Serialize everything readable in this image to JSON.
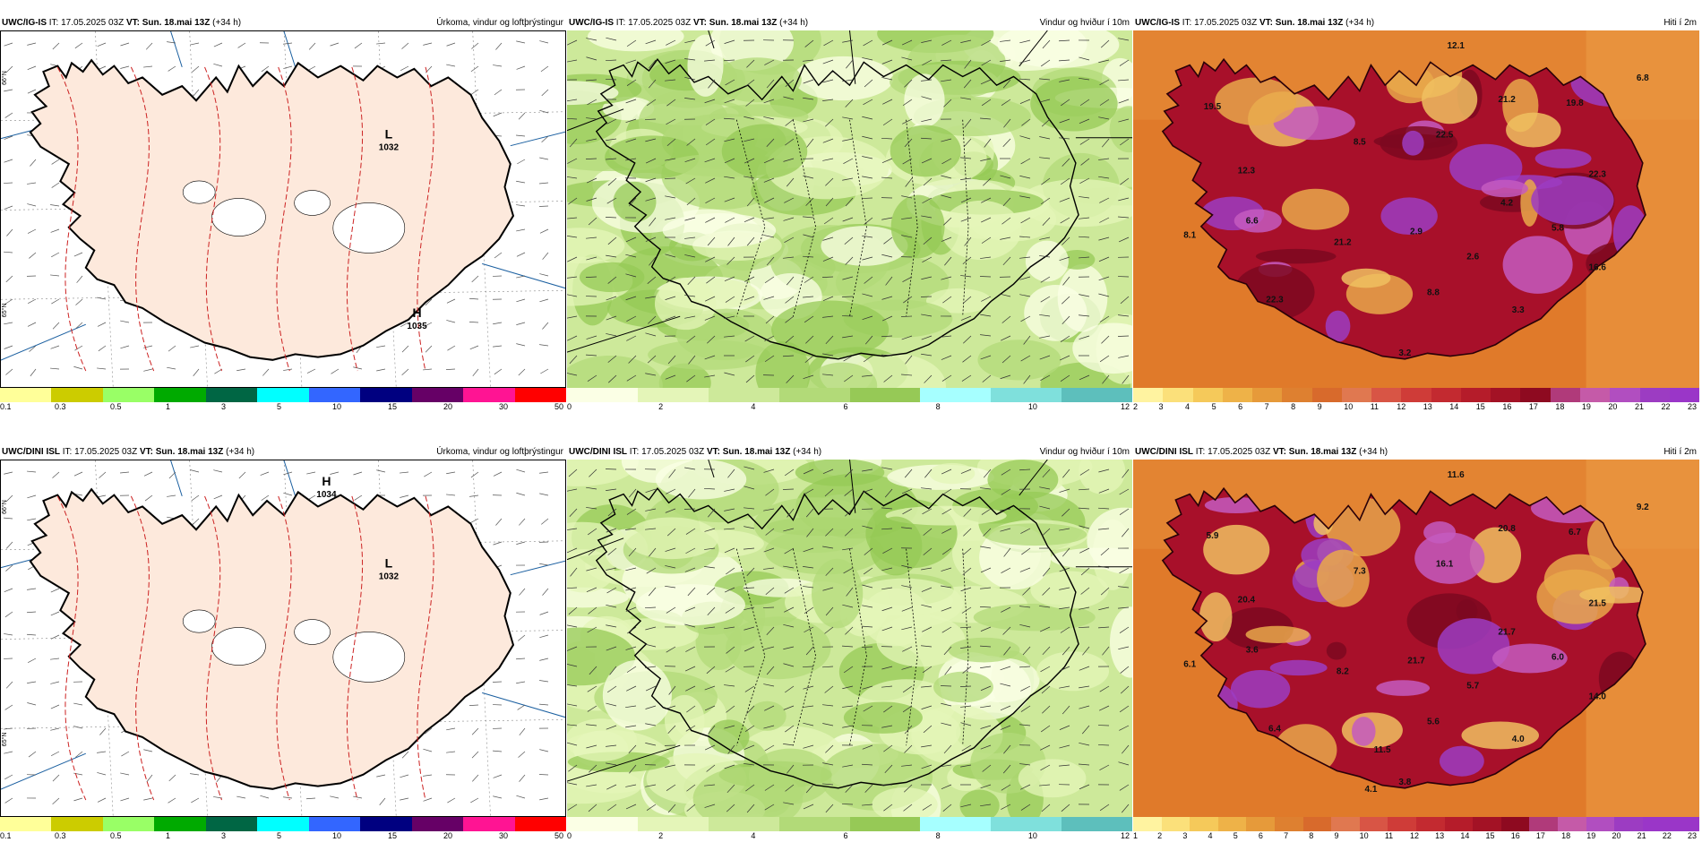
{
  "panels": [
    {
      "id": "top-precip",
      "header_model": "UWC/IG-IS",
      "header_it_label": "IT:",
      "header_it": "17.05.2025 03Z",
      "header_vt_label": "VT:",
      "header_vt": "Sun. 18.mai 13Z",
      "header_lead": "(+34 h)",
      "title": "Úrkoma, vindur og loftþrýstingur",
      "type": "precip",
      "pressure_centers": [
        {
          "kind": "L",
          "value": "1032"
        },
        {
          "kind": "H",
          "value": "1035"
        }
      ],
      "colorbar": {
        "colors": [
          "#ffff99",
          "#cccc00",
          "#99ff66",
          "#00aa00",
          "#006644",
          "#00ffff",
          "#3366ff",
          "#000080",
          "#660066",
          "#ff1493",
          "#ff0000"
        ],
        "labels": [
          "0.1",
          "0.3",
          "0.5",
          "1",
          "3",
          "5",
          "10",
          "15",
          "20",
          "30",
          "50"
        ]
      }
    },
    {
      "id": "top-wind",
      "header_model": "UWC/IG-IS",
      "header_it_label": "IT:",
      "header_it": "17.05.2025 03Z",
      "header_vt_label": "VT:",
      "header_vt": "Sun. 18.mai 13Z",
      "header_lead": "(+34 h)",
      "title": "Vindur og hviður í 10m",
      "type": "wind",
      "colorbar": {
        "colors": [
          "#fbffe5",
          "#e4f5b8",
          "#cde99a",
          "#b2da78",
          "#96c956",
          "#a6ffff",
          "#7fe0dc",
          "#5dbfbc"
        ],
        "labels": [
          "0",
          "2",
          "4",
          "6",
          "8",
          "10",
          "12"
        ]
      }
    },
    {
      "id": "top-temp",
      "header_model": "UWC/IG-IS",
      "header_it_label": "IT:",
      "header_it": "17.05.2025 03Z",
      "header_vt_label": "VT:",
      "header_vt": "Sun. 18.mai 13Z",
      "header_lead": "(+34 h)",
      "title": "Hiti í 2m",
      "type": "temp",
      "point_values": [
        "12.1",
        "6.8",
        "19.5",
        "21.2",
        "19.8",
        "12.3",
        "8.5",
        "22.5",
        "4.2",
        "22.3",
        "6.6",
        "8.1",
        "21.2",
        "2.9",
        "2.6",
        "5.8",
        "16.6",
        "22.3",
        "8.8",
        "3.3",
        "3.2"
      ],
      "colorbar": {
        "colors": [
          "#fff3a0",
          "#fbe07a",
          "#f5c95a",
          "#eeb248",
          "#e69a3a",
          "#de8030",
          "#d86a2c",
          "#e07850",
          "#d85545",
          "#cf3c38",
          "#c32a30",
          "#b51c2a",
          "#a31225",
          "#8e0a20",
          "#b03a7a",
          "#c55aa8",
          "#b14ec0",
          "#9c3cc2",
          "#9a36c8"
        ],
        "labels": [
          "2",
          "3",
          "4",
          "5",
          "6",
          "7",
          "8",
          "9",
          "10",
          "11",
          "12",
          "13",
          "14",
          "15",
          "16",
          "17",
          "18",
          "19",
          "20",
          "21",
          "22",
          "23"
        ]
      }
    },
    {
      "id": "bottom-precip",
      "header_model": "UWC/DINI ISL",
      "header_it_label": "IT:",
      "header_it": "17.05.2025 03Z",
      "header_vt_label": "VT:",
      "header_vt": "Sun. 18.mai 13Z",
      "header_lead": "(+34 h)",
      "title": "Úrkoma, vindur og loftþrýstingur",
      "type": "precip",
      "pressure_centers": [
        {
          "kind": "H",
          "value": "1034"
        },
        {
          "kind": "L",
          "value": "1032"
        }
      ],
      "colorbar": {
        "colors": [
          "#ffff99",
          "#cccc00",
          "#99ff66",
          "#00aa00",
          "#006644",
          "#00ffff",
          "#3366ff",
          "#000080",
          "#660066",
          "#ff1493",
          "#ff0000"
        ],
        "labels": [
          "0.1",
          "0.3",
          "0.5",
          "1",
          "3",
          "5",
          "10",
          "15",
          "20",
          "30",
          "50"
        ]
      }
    },
    {
      "id": "bottom-wind",
      "header_model": "UWC/DINI ISL",
      "header_it_label": "IT:",
      "header_it": "17.05.2025 03Z",
      "header_vt_label": "VT:",
      "header_vt": "Sun. 18.mai 13Z",
      "header_lead": "(+34 h)",
      "title": "Vindur og hviður í 10m",
      "type": "wind",
      "colorbar": {
        "colors": [
          "#fbffe5",
          "#e4f5b8",
          "#cde99a",
          "#b2da78",
          "#96c956",
          "#a6ffff",
          "#7fe0dc",
          "#5dbfbc"
        ],
        "labels": [
          "0",
          "2",
          "4",
          "6",
          "8",
          "10",
          "12"
        ]
      }
    },
    {
      "id": "bottom-temp",
      "header_model": "UWC/DINI ISL",
      "header_it_label": "IT:",
      "header_it": "17.05.2025 03Z",
      "header_vt_label": "VT:",
      "header_vt": "Sun. 18.mai 13Z",
      "header_lead": "(+34 h)",
      "title": "Hiti í 2m",
      "type": "temp",
      "point_values": [
        "11.6",
        "9.2",
        "5.9",
        "20.8",
        "6.7",
        "20.4",
        "7.3",
        "16.1",
        "21.7",
        "21.5",
        "3.6",
        "6.1",
        "8.2",
        "21.7",
        "5.7",
        "6.0",
        "14.0",
        "6.4",
        "5.6",
        "4.0",
        "3.8",
        "11.5",
        "4.1"
      ],
      "colorbar": {
        "colors": [
          "#fff3a0",
          "#fbe07a",
          "#f5c95a",
          "#eeb248",
          "#e69a3a",
          "#de8030",
          "#d86a2c",
          "#e07850",
          "#d85545",
          "#cf3c38",
          "#c32a30",
          "#b51c2a",
          "#a31225",
          "#8e0a20",
          "#b03a7a",
          "#c55aa8",
          "#b14ec0",
          "#9c3cc2",
          "#9a36c8",
          "#9a36c8"
        ],
        "labels": [
          "1",
          "2",
          "3",
          "4",
          "5",
          "6",
          "7",
          "8",
          "9",
          "10",
          "11",
          "12",
          "13",
          "14",
          "15",
          "16",
          "17",
          "18",
          "19",
          "20",
          "21",
          "22",
          "23"
        ]
      }
    }
  ],
  "lat_labels": [
    "66°N",
    "65°N"
  ]
}
